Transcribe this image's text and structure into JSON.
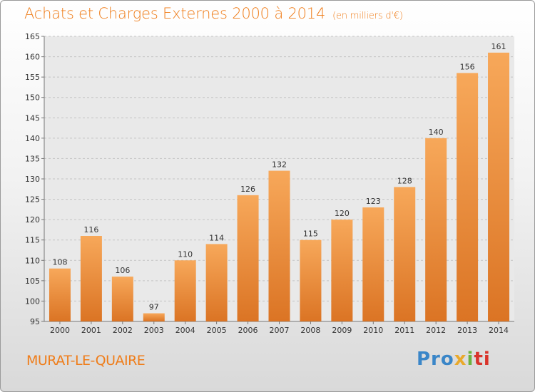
{
  "title": "Achats et Charges Externes 2000 à 2014",
  "title_unit": "(en milliers d'€)",
  "place_name": "MURAT-LE-QUAIRE",
  "logo": {
    "part1": "Pro",
    "part2": "x",
    "part3": "i",
    "part4": "ti"
  },
  "colors": {
    "accent": "#ef7d1a",
    "bar_light": "#f7a85a",
    "bar_dark": "#db7424"
  },
  "chart_data": {
    "type": "bar",
    "categories": [
      "2000",
      "2001",
      "2002",
      "2003",
      "2004",
      "2005",
      "2006",
      "2007",
      "2008",
      "2009",
      "2010",
      "2011",
      "2012",
      "2013",
      "2014"
    ],
    "values": [
      108,
      116,
      106,
      97,
      110,
      114,
      126,
      132,
      115,
      120,
      123,
      128,
      140,
      156,
      161
    ],
    "ylim": [
      95,
      165
    ],
    "yticks": [
      95,
      100,
      105,
      110,
      115,
      120,
      125,
      130,
      135,
      140,
      145,
      150,
      155,
      160,
      165
    ],
    "grid": true
  }
}
